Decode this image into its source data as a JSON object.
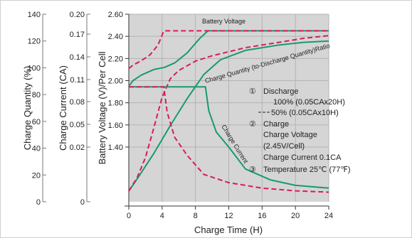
{
  "chart_data": {
    "type": "line",
    "title": "",
    "xlabel": "Charge Time (H)",
    "xlim": [
      0,
      24
    ],
    "x_ticks": [
      "0",
      "4",
      "8",
      "12",
      "16",
      "20",
      "24"
    ],
    "y_axes": [
      {
        "label": "Charge Quantity (%)",
        "ticks": [
          "0",
          "20",
          "40",
          "60",
          "80",
          "100",
          "120",
          "140"
        ]
      },
      {
        "label": "Charge Current (CA)",
        "ticks": [
          "0",
          "0.02",
          "0.05",
          "0.08",
          "0.11",
          "0.14",
          "0.17",
          "0.20"
        ]
      },
      {
        "label": "Battery Voltage (V)/Per Cell",
        "ticks": [
          "1.40",
          "1.60",
          "1.80",
          "2.00",
          "2.20",
          "2.40",
          "2.60"
        ],
        "range": [
          1.4,
          2.6
        ]
      }
    ],
    "grid": true,
    "colors": {
      "solid": "#1a9a6b",
      "dashed": "#d81b60",
      "plot_bg": "#d5d5d5",
      "grid": "#b3b3b3"
    },
    "curve_labels": {
      "voltage": "Battery Voltage",
      "quantity": "Charge Quantity (to-Discharge Quantity)Ratio",
      "current": "Charge Current"
    },
    "series": [
      {
        "curve": "voltage",
        "case": "100% discharge",
        "style": "solid",
        "x": [
          0,
          0.5,
          1.5,
          3,
          4.3,
          5.5,
          7,
          8.5,
          9.5,
          12,
          16,
          20,
          24
        ],
        "y": [
          1.95,
          2.0,
          2.05,
          2.1,
          2.12,
          2.16,
          2.25,
          2.38,
          2.45,
          2.45,
          2.45,
          2.45,
          2.45
        ]
      },
      {
        "curve": "voltage",
        "case": "50% discharge",
        "style": "dashed",
        "x": [
          0,
          0.5,
          1.5,
          2.5,
          3.5,
          4.2,
          5,
          8,
          12,
          16,
          20,
          24
        ],
        "y": [
          2.11,
          2.14,
          2.18,
          2.23,
          2.32,
          2.45,
          2.45,
          2.45,
          2.45,
          2.45,
          2.45,
          2.45
        ]
      },
      {
        "curve": "quantity",
        "case": "100% discharge",
        "style": "solid",
        "x": [
          0,
          1,
          3,
          5,
          7,
          9,
          11,
          14,
          18,
          21,
          24
        ],
        "q": [
          8,
          17,
          36,
          57,
          77,
          95,
          106,
          113,
          117,
          119,
          120
        ]
      },
      {
        "curve": "quantity",
        "case": "50% discharge",
        "style": "dashed",
        "x": [
          0,
          1,
          2,
          3,
          4,
          5,
          6,
          8,
          10,
          14,
          18,
          21,
          24
        ],
        "q": [
          8,
          18,
          33,
          55,
          78,
          92,
          98,
          105,
          109,
          115,
          119,
          122,
          124
        ]
      },
      {
        "curve": "current",
        "case": "100% discharge",
        "style": "solid",
        "x": [
          0,
          4,
          8,
          9.2,
          9.6,
          10.5,
          12,
          14,
          17,
          20,
          24
        ],
        "i": [
          0.1,
          0.1,
          0.1,
          0.1,
          0.068,
          0.04,
          0.02,
          0.012,
          0.008,
          0.006,
          0.005
        ]
      },
      {
        "curve": "current",
        "case": "50% discharge",
        "style": "dashed",
        "x": [
          0,
          4.2,
          4.6,
          5.5,
          7,
          9,
          12,
          16,
          20,
          24
        ],
        "i": [
          0.1,
          0.1,
          0.066,
          0.033,
          0.017,
          0.01,
          0.007,
          0.005,
          0.004,
          0.0035
        ]
      }
    ],
    "annotations": {
      "discharge": {
        "marker": "①",
        "title": "Discharge",
        "line1": "100% (0.05CAx20H)",
        "line2": "50% (0.05CAx10H)"
      },
      "charge": {
        "marker": "②",
        "title": "Charge",
        "line1": "Charge Voltage",
        "line2": "(2.45V/Cell)",
        "line3": "Charge Current 0.1CA"
      },
      "temperature": {
        "marker": "③",
        "text": "Temperature 25℃ (77℉)"
      }
    }
  }
}
